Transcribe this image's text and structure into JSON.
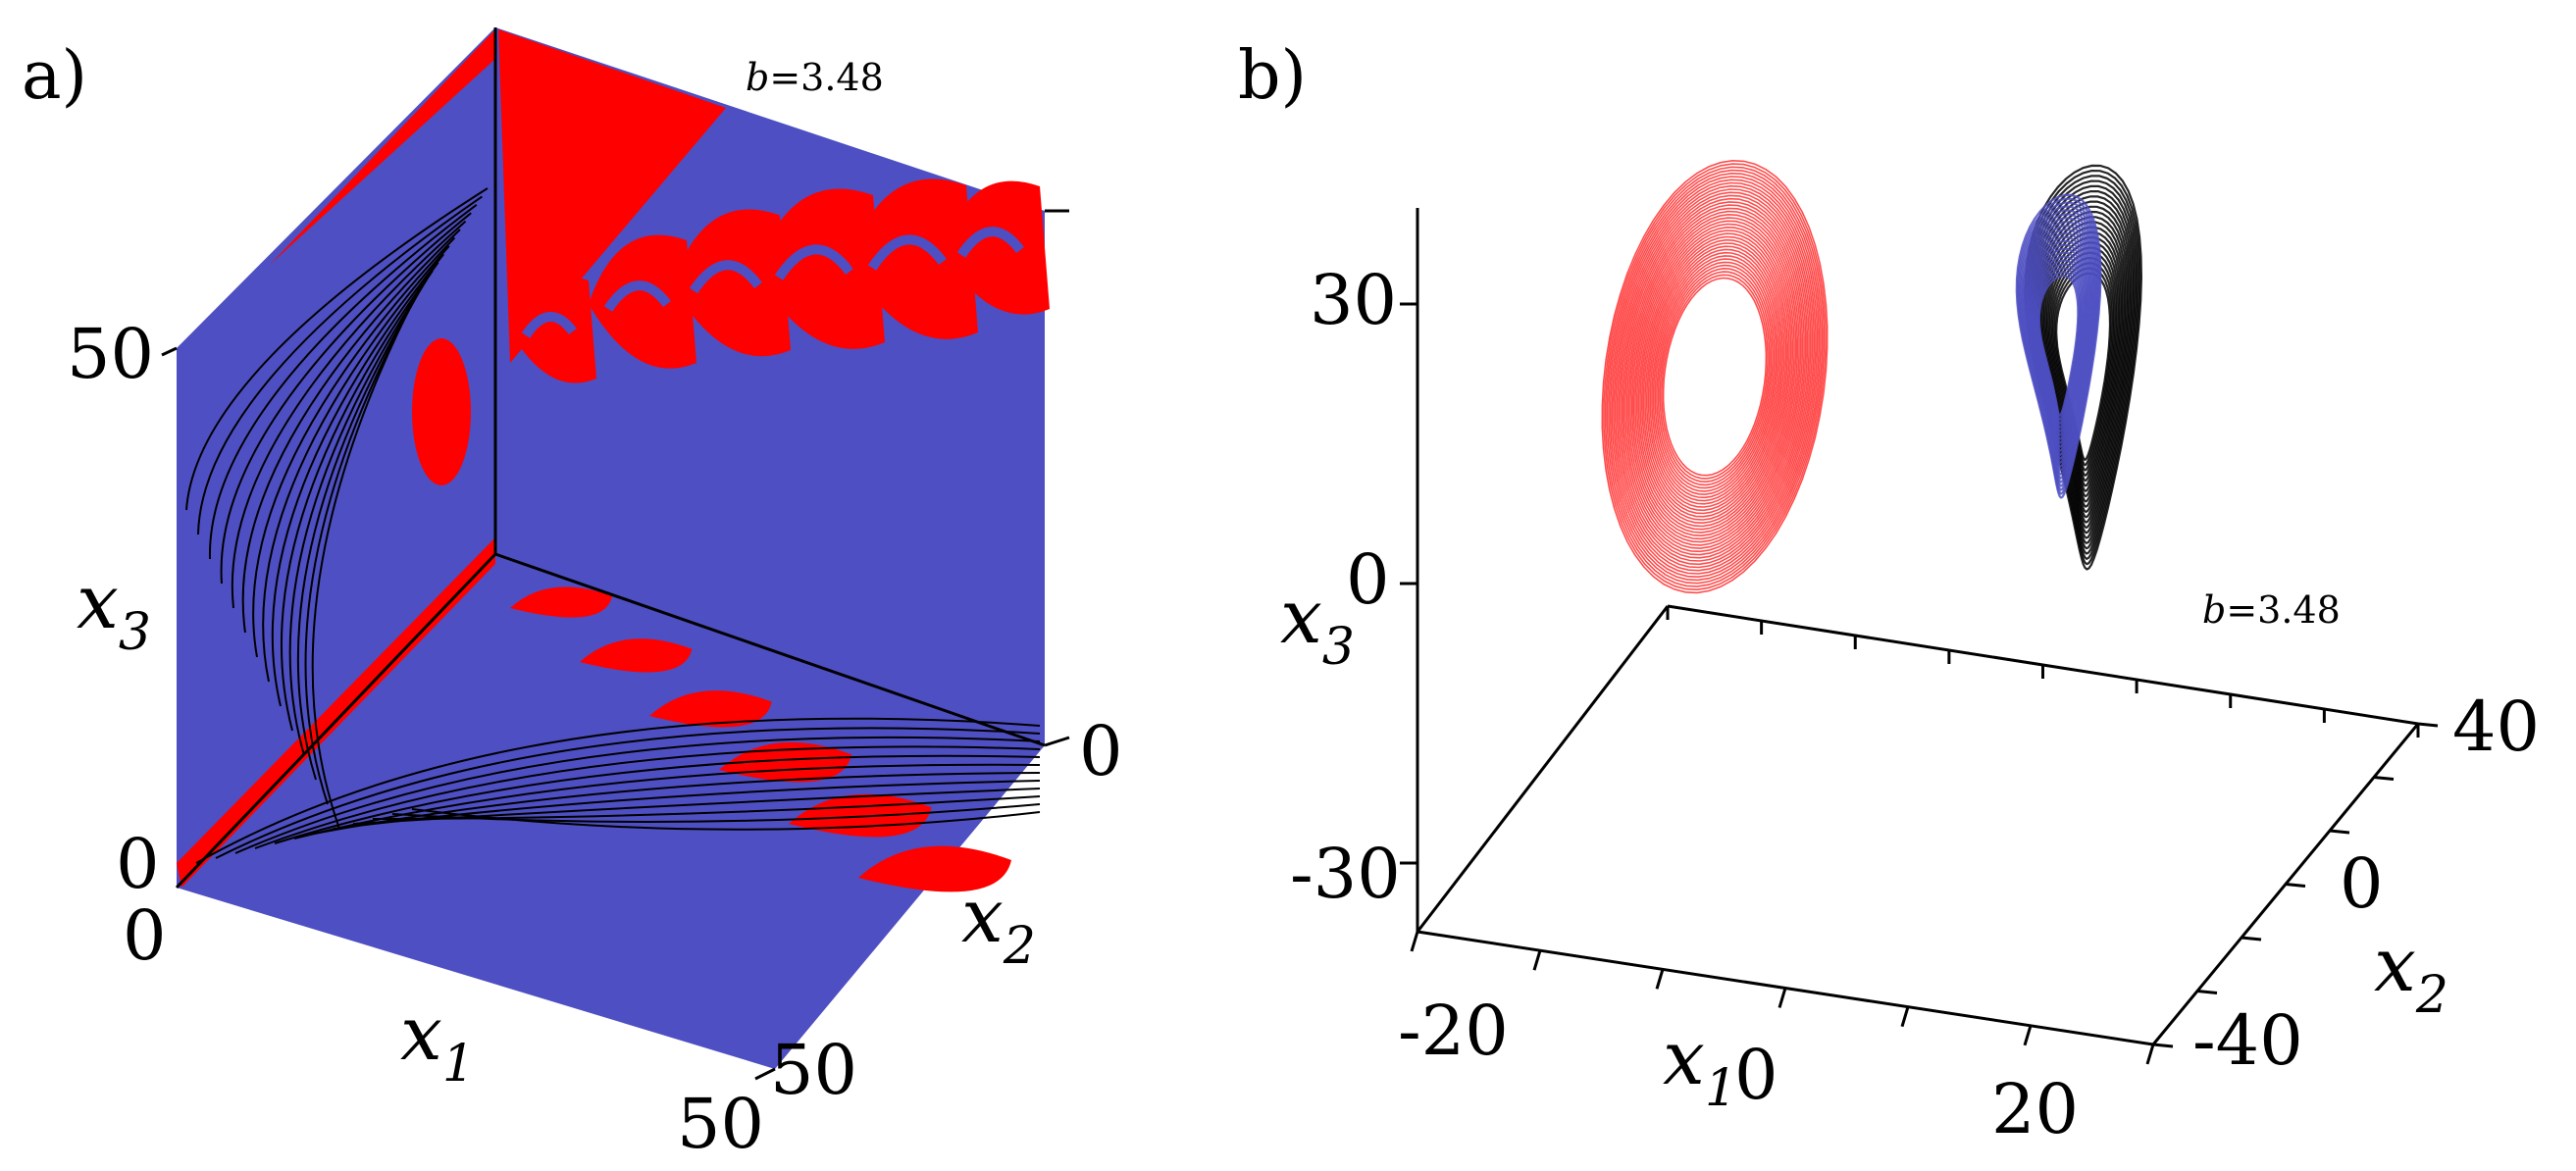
{
  "figure": {
    "panel_a_label": "a)",
    "panel_b_label": "b)"
  },
  "chart_data": [
    {
      "type": "heatmap",
      "panel": "a",
      "description_of_axes": "3D cube of basins of attraction",
      "parameter": {
        "prefix": "b",
        "value": "=3.48"
      },
      "axes": {
        "x1": {
          "base": "x",
          "sub": "1",
          "ticks": [
            "0",
            "50"
          ],
          "range": [
            0,
            50
          ]
        },
        "x2": {
          "base": "x",
          "sub": "2",
          "ticks": [
            "0",
            "50"
          ],
          "range": [
            0,
            50
          ]
        },
        "x3": {
          "base": "x",
          "sub": "3",
          "ticks": [
            "0",
            "50"
          ],
          "range": [
            0,
            50
          ]
        }
      },
      "colors": {
        "basin_red": "#ff0000",
        "basin_blue": "#4e4fc2",
        "boundary": "#000000"
      }
    },
    {
      "type": "line",
      "panel": "b",
      "parameter": {
        "prefix": "b",
        "value": "=3.48"
      },
      "axes": {
        "x1": {
          "base": "x",
          "sub": "1",
          "ticks": [
            "-20",
            "0",
            "20"
          ],
          "range": [
            -30,
            30
          ]
        },
        "x2": {
          "base": "x",
          "sub": "2",
          "ticks": [
            "-40",
            "0",
            "40"
          ],
          "range": [
            -50,
            50
          ]
        },
        "x3": {
          "base": "x",
          "sub": "3",
          "ticks": [
            "-30",
            "0",
            "30"
          ],
          "range": [
            -40,
            40
          ]
        }
      },
      "series": [
        {
          "color": "#ff0000",
          "center": [
            -14,
            -10,
            14
          ],
          "radius": [
            9,
            14,
            18
          ]
        },
        {
          "color": "#4e4fc2",
          "center": [
            8,
            18,
            12
          ],
          "radius": [
            5,
            6,
            12
          ]
        },
        {
          "color": "#000000",
          "center": [
            10,
            18,
            10
          ],
          "radius": [
            7,
            8,
            16
          ]
        }
      ]
    }
  ]
}
